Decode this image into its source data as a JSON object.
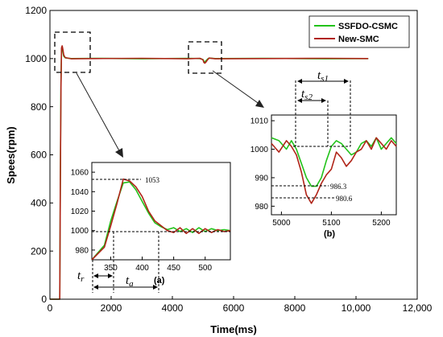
{
  "chart_data": [
    {
      "id": "main",
      "type": "line",
      "xlabel": "Time(ms)",
      "ylabel": "Spees(rpm)",
      "xlim": [
        0,
        12000
      ],
      "ylim": [
        0,
        1200
      ],
      "xticks": [
        0,
        2000,
        4000,
        6000,
        8000,
        10000,
        12000
      ],
      "xtick_labels": [
        "0",
        "2000",
        "4000",
        "6000",
        "8000",
        "10,000",
        "12,000"
      ],
      "yticks": [
        0,
        200,
        400,
        600,
        800,
        1000,
        1200
      ],
      "ytick_labels": [
        "0",
        "200",
        "400",
        "600",
        "800",
        "1000",
        "1200"
      ],
      "legend_position": "top-right",
      "series": [
        {
          "name": "SSFDO-CSMC",
          "color": "#22c21a",
          "x": [
            0,
            320,
            340,
            360,
            380,
            400,
            420,
            450,
            500,
            700,
            1500,
            3000,
            4500,
            4900,
            5000,
            5030,
            5060,
            5100,
            5150,
            5200,
            5400,
            7000,
            9000,
            10400
          ],
          "y": [
            0,
            0,
            500,
            900,
            1040,
            1050,
            1030,
            1010,
            1003,
            1000,
            1001,
            999,
            1001,
            1000,
            996,
            988,
            987,
            991,
            998,
            1002,
            1000,
            1001,
            999,
            1000
          ]
        },
        {
          "name": "New-SMC",
          "color": "#b02418",
          "x": [
            0,
            320,
            340,
            360,
            380,
            400,
            420,
            450,
            500,
            700,
            1500,
            3000,
            4500,
            4900,
            5000,
            5030,
            5060,
            5100,
            5150,
            5200,
            5400,
            7000,
            9000,
            10400
          ],
          "y": [
            0,
            0,
            480,
            880,
            1045,
            1053,
            1040,
            1015,
            1004,
            999,
            1000,
            1001,
            999,
            1001,
            995,
            984,
            981,
            986,
            995,
            1002,
            999,
            1000,
            1001,
            1000
          ]
        }
      ],
      "zoom_boxes": [
        {
          "label": "(a)",
          "x_range": [
            240,
            1150
          ],
          "y_range": [
            955,
            1090
          ]
        },
        {
          "label": "(b)",
          "x_range": [
            4550,
            5600
          ],
          "y_range": [
            960,
            1050
          ]
        }
      ]
    },
    {
      "id": "inset-a",
      "type": "line",
      "label": "(a)",
      "xlim": [
        320,
        540
      ],
      "ylim": [
        970,
        1070
      ],
      "xticks": [
        350,
        400,
        450,
        500
      ],
      "yticks": [
        980,
        1000,
        1020,
        1040,
        1060
      ],
      "series": [
        {
          "name": "SSFDO-CSMC",
          "x": [
            320,
            340,
            350,
            360,
            370,
            380,
            390,
            400,
            410,
            420,
            430,
            440,
            450,
            460,
            470,
            480,
            490,
            500,
            510,
            520,
            530,
            540
          ],
          "y": [
            970,
            985,
            1010,
            1030,
            1049,
            1050,
            1042,
            1030,
            1018,
            1008,
            1004,
            1001,
            1003,
            999,
            1002,
            998,
            1003,
            999,
            1002,
            1000,
            1001,
            1000
          ]
        },
        {
          "name": "New-SMC",
          "x": [
            320,
            340,
            350,
            360,
            370,
            380,
            390,
            400,
            410,
            420,
            430,
            440,
            450,
            460,
            470,
            480,
            490,
            500,
            510,
            520,
            530,
            540
          ],
          "y": [
            970,
            983,
            1005,
            1028,
            1053,
            1051,
            1045,
            1035,
            1020,
            1010,
            1005,
            1000,
            998,
            1003,
            997,
            1002,
            997,
            1002,
            998,
            1001,
            999,
            1000
          ]
        }
      ],
      "annotations": {
        "peak": "1053",
        "tr": "t",
        "tr_sub": "r",
        "ta": "t",
        "ta_sub": "a"
      }
    },
    {
      "id": "inset-b",
      "type": "line",
      "label": "(b)",
      "xlim": [
        4980,
        5230
      ],
      "ylim": [
        977,
        1012
      ],
      "xticks": [
        5000,
        5100,
        5200
      ],
      "yticks": [
        980,
        990,
        1000,
        1010
      ],
      "series": [
        {
          "name": "SSFDO-CSMC",
          "x": [
            4980,
            4995,
            5010,
            5020,
            5030,
            5040,
            5050,
            5060,
            5070,
            5080,
            5090,
            5100,
            5110,
            5120,
            5130,
            5140,
            5150,
            5160,
            5170,
            5180,
            5190,
            5200,
            5210,
            5220,
            5230
          ],
          "y": [
            1004,
            1003,
            1000,
            1003,
            1000,
            995,
            990,
            987,
            987,
            990,
            996,
            1001,
            1003,
            1002,
            1000,
            998,
            999,
            1002,
            1003,
            1001,
            1004,
            1000,
            1002,
            1004,
            1002
          ],
          "min_label": "986.3"
        },
        {
          "name": "New-SMC",
          "x": [
            4980,
            4995,
            5010,
            5020,
            5030,
            5040,
            5050,
            5060,
            5070,
            5080,
            5090,
            5100,
            5110,
            5120,
            5130,
            5140,
            5150,
            5160,
            5170,
            5180,
            5190,
            5200,
            5210,
            5220,
            5230
          ],
          "y": [
            1002,
            999,
            1003,
            1001,
            998,
            992,
            984,
            981,
            984,
            988,
            991,
            993,
            999,
            997,
            994,
            996,
            999,
            1000,
            1003,
            1000,
            1004,
            1002,
            1000,
            1003,
            1001
          ],
          "min_label": "980.6"
        }
      ],
      "annotations": {
        "ts1": "t",
        "ts1_sub": "s1",
        "ts2": "t",
        "ts2_sub": "s2"
      }
    }
  ]
}
